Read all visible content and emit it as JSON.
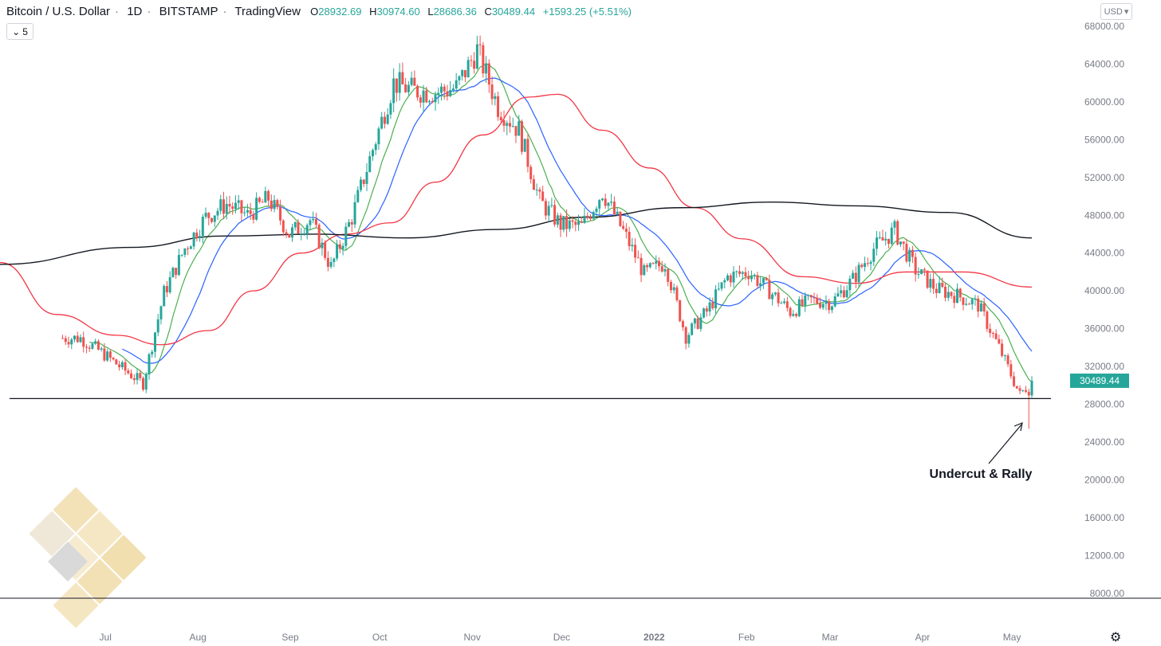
{
  "header": {
    "symbol": "Bitcoin / U.S. Dollar",
    "interval": "1D",
    "exchange": "BITSTAMP",
    "source": "TradingView",
    "ohlc": {
      "o_label": "O",
      "o_value": "28932.69",
      "h_label": "H",
      "h_value": "30974.60",
      "l_label": "L",
      "l_value": "28686.36",
      "c_label": "C",
      "c_value": "30489.44",
      "change": "+1593.25 (+5.51%)"
    },
    "interval_picker": "5",
    "currency": "USD"
  },
  "colors": {
    "up": "#26a69a",
    "down": "#ef5350",
    "ma10": "#4caf50",
    "ma21": "#2962ff",
    "ma50": "#f23645",
    "ma200": "#131722"
  },
  "chart_data": {
    "type": "candlestick",
    "y_axis": {
      "ticks": [
        "68000.00",
        "64000.00",
        "60000.00",
        "56000.00",
        "52000.00",
        "48000.00",
        "44000.00",
        "40000.00",
        "36000.00",
        "32000.00",
        "28000.00",
        "24000.00",
        "20000.00",
        "16000.00",
        "12000.00",
        "8000.00"
      ],
      "range": [
        6500,
        69500
      ]
    },
    "x_axis": {
      "labels": [
        "Jul",
        "Aug",
        "Sep",
        "Oct",
        "Nov",
        "Dec",
        "2022",
        "Feb",
        "Mar",
        "Apr",
        "May"
      ]
    },
    "price_tag": "30489.44",
    "support_line": 28600,
    "annotation": "Undercut & Rally",
    "weekly_closes": [
      {
        "d": "2021-06-28",
        "c": 35000
      },
      {
        "d": "2021-07-05",
        "c": 33500
      },
      {
        "d": "2021-07-12",
        "c": 31800
      },
      {
        "d": "2021-07-19",
        "c": 30200
      },
      {
        "d": "2021-07-26",
        "c": 39800
      },
      {
        "d": "2021-08-02",
        "c": 44500
      },
      {
        "d": "2021-08-09",
        "c": 47800
      },
      {
        "d": "2021-08-16",
        "c": 49200
      },
      {
        "d": "2021-08-23",
        "c": 48000
      },
      {
        "d": "2021-08-30",
        "c": 49800
      },
      {
        "d": "2021-09-06",
        "c": 46000
      },
      {
        "d": "2021-09-13",
        "c": 47500
      },
      {
        "d": "2021-09-20",
        "c": 42500
      },
      {
        "d": "2021-09-27",
        "c": 47800
      },
      {
        "d": "2021-10-04",
        "c": 55000
      },
      {
        "d": "2021-10-11",
        "c": 62000
      },
      {
        "d": "2021-10-18",
        "c": 61200
      },
      {
        "d": "2021-10-25",
        "c": 61000
      },
      {
        "d": "2021-11-01",
        "c": 61500
      },
      {
        "d": "2021-11-08",
        "c": 65500
      },
      {
        "d": "2021-11-15",
        "c": 59500
      },
      {
        "d": "2021-11-22",
        "c": 57000
      },
      {
        "d": "2021-11-29",
        "c": 49500
      },
      {
        "d": "2021-12-06",
        "c": 47000
      },
      {
        "d": "2021-12-13",
        "c": 46800
      },
      {
        "d": "2021-12-20",
        "c": 50500
      },
      {
        "d": "2021-12-27",
        "c": 46300
      },
      {
        "d": "2022-01-03",
        "c": 41800
      },
      {
        "d": "2022-01-10",
        "c": 43000
      },
      {
        "d": "2022-01-17",
        "c": 35200
      },
      {
        "d": "2022-01-24",
        "c": 37800
      },
      {
        "d": "2022-01-31",
        "c": 41500
      },
      {
        "d": "2022-02-07",
        "c": 42000
      },
      {
        "d": "2022-02-14",
        "c": 40000
      },
      {
        "d": "2022-02-21",
        "c": 37800
      },
      {
        "d": "2022-02-28",
        "c": 39000
      },
      {
        "d": "2022-03-07",
        "c": 38800
      },
      {
        "d": "2022-03-14",
        "c": 41200
      },
      {
        "d": "2022-03-21",
        "c": 44500
      },
      {
        "d": "2022-03-28",
        "c": 46400
      },
      {
        "d": "2022-04-04",
        "c": 42200
      },
      {
        "d": "2022-04-11",
        "c": 40200
      },
      {
        "d": "2022-04-18",
        "c": 39500
      },
      {
        "d": "2022-04-25",
        "c": 38500
      },
      {
        "d": "2022-05-02",
        "c": 34000
      },
      {
        "d": "2022-05-09",
        "c": 29000
      },
      {
        "d": "2022-05-13",
        "c": 30489.44
      }
    ],
    "last_candle": {
      "o": 28932.69,
      "h": 30974.6,
      "l": 28686.36,
      "c": 30489.44
    },
    "undercut_low": 25400,
    "ma200_points": [
      {
        "d": "2021-06-01",
        "v": 42800
      },
      {
        "d": "2021-07-15",
        "v": 44600
      },
      {
        "d": "2021-08-15",
        "v": 45800
      },
      {
        "d": "2021-09-15",
        "v": 46000
      },
      {
        "d": "2021-10-15",
        "v": 45600
      },
      {
        "d": "2021-11-15",
        "v": 46500
      },
      {
        "d": "2021-12-15",
        "v": 47800
      },
      {
        "d": "2022-01-15",
        "v": 48800
      },
      {
        "d": "2022-02-15",
        "v": 49400
      },
      {
        "d": "2022-03-15",
        "v": 49000
      },
      {
        "d": "2022-04-15",
        "v": 48300
      },
      {
        "d": "2022-05-13",
        "v": 45600
      }
    ],
    "ma50_points": [
      {
        "d": "2021-06-01",
        "v": 43000
      },
      {
        "d": "2021-06-20",
        "v": 37500
      },
      {
        "d": "2021-07-10",
        "v": 35300
      },
      {
        "d": "2021-07-25",
        "v": 34300
      },
      {
        "d": "2021-08-10",
        "v": 35800
      },
      {
        "d": "2021-08-25",
        "v": 40000
      },
      {
        "d": "2021-09-10",
        "v": 44000
      },
      {
        "d": "2021-09-25",
        "v": 46000
      },
      {
        "d": "2021-10-10",
        "v": 47200
      },
      {
        "d": "2021-10-25",
        "v": 51500
      },
      {
        "d": "2021-11-10",
        "v": 56500
      },
      {
        "d": "2021-11-25",
        "v": 60500
      },
      {
        "d": "2021-12-05",
        "v": 60800
      },
      {
        "d": "2021-12-20",
        "v": 57000
      },
      {
        "d": "2022-01-05",
        "v": 53000
      },
      {
        "d": "2022-01-20",
        "v": 48800
      },
      {
        "d": "2022-02-05",
        "v": 45500
      },
      {
        "d": "2022-02-25",
        "v": 41500
      },
      {
        "d": "2022-03-15",
        "v": 40800
      },
      {
        "d": "2022-04-01",
        "v": 42000
      },
      {
        "d": "2022-04-20",
        "v": 42000
      },
      {
        "d": "2022-05-13",
        "v": 40400
      }
    ]
  }
}
